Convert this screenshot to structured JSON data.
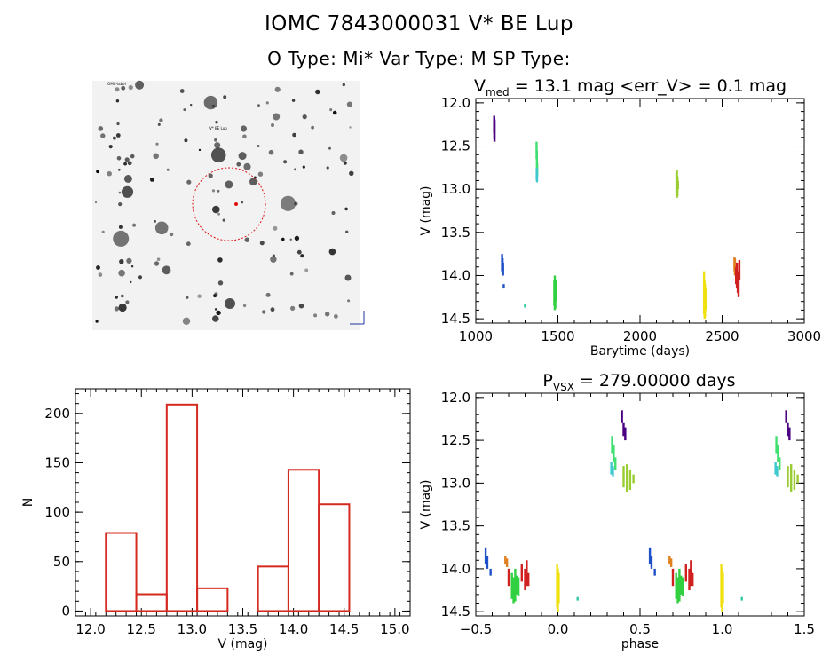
{
  "header": {
    "line1": "IOMC 7843000031    V* BE Lup",
    "line2": "O Type: Mi*   Var Type: M   SP Type:"
  },
  "colors": {
    "axes": "#000000",
    "histogram": "#d42a20",
    "finder_marker": "#e01010"
  },
  "chart_data": [
    {
      "type": "image",
      "panel": "finder",
      "description_colors": [
        "grayscale"
      ],
      "marker": "dashed-circle",
      "labels": [
        "IOMC-label",
        "V* BE Lup"
      ]
    },
    {
      "type": "scatter",
      "panel": "light_curve",
      "title_prefix": "V",
      "title_sub": "med",
      "title_rest": " = 13.1 mag <err_V> = 0.1 mag",
      "xlabel": "Barytime (days)",
      "ylabel": "V (mag)",
      "xlim": [
        1000,
        3000
      ],
      "ylim": [
        14.55,
        11.95
      ],
      "xticks": [
        1000,
        1500,
        2000,
        2500,
        3000
      ],
      "yticks": [
        12.0,
        12.5,
        13.0,
        13.5,
        14.0,
        14.5
      ],
      "ytick_labels": [
        "12.0",
        "12.5",
        "13.0",
        "13.5",
        "14.0",
        "14.5"
      ],
      "series": [
        {
          "color": "#4b0082",
          "x": [
            1112,
            1113,
            1114
          ],
          "ymin": [
            12.15,
            12.18,
            12.2
          ],
          "ymax": [
            12.35,
            12.42,
            12.45
          ]
        },
        {
          "color": "#1e50c8",
          "x": [
            1160,
            1163,
            1166,
            1170
          ],
          "ymin": [
            13.75,
            13.8,
            13.85,
            14.1
          ],
          "ymax": [
            13.95,
            13.98,
            14.0,
            14.15
          ]
        },
        {
          "color": "#30c8a0",
          "x": [
            1300
          ],
          "ymin": [
            14.33
          ],
          "ymax": [
            14.37
          ]
        },
        {
          "color": "#40e070",
          "x": [
            1370,
            1372,
            1374
          ],
          "ymin": [
            12.45,
            12.55,
            12.7
          ],
          "ymax": [
            12.65,
            12.75,
            12.85
          ]
        },
        {
          "color": "#40c8d0",
          "x": [
            1371,
            1373
          ],
          "ymin": [
            12.75,
            12.8
          ],
          "ymax": [
            12.9,
            12.92
          ]
        },
        {
          "color": "#30d040",
          "x": [
            1478,
            1481,
            1484,
            1487,
            1490
          ],
          "ymin": [
            14.05,
            14.0,
            14.1,
            14.05,
            14.15
          ],
          "ymax": [
            14.35,
            14.4,
            14.38,
            14.3,
            14.25
          ]
        },
        {
          "color": "#9acd32",
          "x": [
            2222,
            2225,
            2228,
            2231
          ],
          "ymin": [
            12.8,
            12.78,
            12.85,
            12.9
          ],
          "ymax": [
            13.05,
            13.1,
            13.08,
            13.0
          ]
        },
        {
          "color": "#f0e010",
          "x": [
            2390,
            2393,
            2396,
            2399
          ],
          "ymin": [
            13.95,
            14.05,
            14.1,
            14.15
          ],
          "ymax": [
            14.45,
            14.5,
            14.48,
            14.4
          ]
        },
        {
          "color": "#e08020",
          "x": [
            2575,
            2578
          ],
          "ymin": [
            13.78,
            13.8
          ],
          "ymax": [
            13.95,
            14.0
          ]
        },
        {
          "color": "#d02020",
          "x": [
            2585,
            2590,
            2595,
            2600,
            2605
          ],
          "ymin": [
            13.9,
            13.85,
            13.95,
            14.0,
            13.82
          ],
          "ymax": [
            14.1,
            14.15,
            14.2,
            14.25,
            14.05
          ]
        }
      ]
    },
    {
      "type": "bar",
      "panel": "histogram",
      "xlabel": "V (mag)",
      "ylabel": "N",
      "xlim": [
        11.85,
        15.15
      ],
      "ylim": [
        -5,
        225
      ],
      "xticks": [
        12.0,
        12.5,
        13.0,
        13.5,
        14.0,
        14.5,
        15.0
      ],
      "xtick_labels": [
        "12.0",
        "12.5",
        "13.0",
        "13.5",
        "14.0",
        "14.5",
        "15.0"
      ],
      "yticks": [
        0,
        50,
        100,
        150,
        200
      ],
      "bin_edges": [
        12.15,
        12.45,
        12.75,
        13.05,
        13.35,
        13.65,
        13.95,
        14.25,
        14.55
      ],
      "values": [
        79,
        17,
        209,
        23,
        0,
        45,
        143,
        108
      ]
    },
    {
      "type": "scatter",
      "panel": "phase_curve",
      "title_prefix": "P",
      "title_sub": "VSX",
      "title_rest": " = 279.00000 days",
      "xlabel": "phase",
      "ylabel": "V (mag)",
      "xlim": [
        -0.5,
        1.5
      ],
      "ylim": [
        14.55,
        11.95
      ],
      "xticks": [
        -0.5,
        0.0,
        0.5,
        1.0,
        1.5
      ],
      "xtick_labels": [
        "−0.5",
        "0.0",
        "0.5",
        "1.0",
        "1.5"
      ],
      "yticks": [
        12.0,
        12.5,
        13.0,
        13.5,
        14.0,
        14.5
      ],
      "ytick_labels": [
        "12.0",
        "12.5",
        "13.0",
        "13.5",
        "14.0",
        "14.5"
      ],
      "series": [
        {
          "color": "#1e50c8",
          "x": [
            -0.44,
            -0.43,
            -0.41
          ],
          "ymin": [
            13.75,
            13.85,
            14.0
          ],
          "ymax": [
            13.95,
            14.0,
            14.08
          ]
        },
        {
          "color": "#e08020",
          "x": [
            -0.32,
            -0.31
          ],
          "ymin": [
            13.85,
            13.88
          ],
          "ymax": [
            13.95,
            13.98
          ]
        },
        {
          "color": "#30d040",
          "x": [
            -0.28,
            -0.27,
            -0.26,
            -0.25,
            -0.24
          ],
          "ymin": [
            14.05,
            14.1,
            14.0,
            14.08,
            14.1
          ],
          "ymax": [
            14.35,
            14.4,
            14.38,
            14.3,
            14.32
          ]
        },
        {
          "color": "#d02020",
          "x": [
            -0.3,
            -0.22,
            -0.2,
            -0.19,
            -0.18
          ],
          "ymin": [
            14.0,
            13.95,
            14.0,
            13.9,
            14.05
          ],
          "ymax": [
            14.2,
            14.15,
            14.25,
            14.2,
            14.2
          ]
        },
        {
          "color": "#f0e010",
          "x": [
            -0.005,
            0.0,
            0.005
          ],
          "ymin": [
            13.95,
            14.0,
            14.05
          ],
          "ymax": [
            14.45,
            14.5,
            14.4
          ]
        },
        {
          "color": "#30c8a0",
          "x": [
            0.12
          ],
          "ymin": [
            14.33
          ],
          "ymax": [
            14.37
          ]
        },
        {
          "color": "#40e070",
          "x": [
            0.33,
            0.34,
            0.35
          ],
          "ymin": [
            12.45,
            12.55,
            12.7
          ],
          "ymax": [
            12.65,
            12.75,
            12.85
          ]
        },
        {
          "color": "#40c8d0",
          "x": [
            0.325,
            0.335
          ],
          "ymin": [
            12.75,
            12.8
          ],
          "ymax": [
            12.9,
            12.92
          ]
        },
        {
          "color": "#4b0082",
          "x": [
            0.39,
            0.4,
            0.41
          ],
          "ymin": [
            12.15,
            12.3,
            12.35
          ],
          "ymax": [
            12.3,
            12.45,
            12.5
          ]
        },
        {
          "color": "#9acd32",
          "x": [
            0.4,
            0.42,
            0.44,
            0.46
          ],
          "ymin": [
            12.8,
            12.78,
            12.85,
            12.9
          ],
          "ymax": [
            13.05,
            13.1,
            13.08,
            13.0
          ]
        },
        {
          "color": "#1e50c8",
          "x": [
            0.56,
            0.57,
            0.59
          ],
          "ymin": [
            13.75,
            13.85,
            14.0
          ],
          "ymax": [
            13.95,
            14.0,
            14.08
          ]
        },
        {
          "color": "#e08020",
          "x": [
            0.68,
            0.69
          ],
          "ymin": [
            13.85,
            13.88
          ],
          "ymax": [
            13.95,
            13.98
          ]
        },
        {
          "color": "#30d040",
          "x": [
            0.72,
            0.73,
            0.74,
            0.75,
            0.76
          ],
          "ymin": [
            14.05,
            14.1,
            14.0,
            14.08,
            14.1
          ],
          "ymax": [
            14.35,
            14.4,
            14.38,
            14.3,
            14.32
          ]
        },
        {
          "color": "#d02020",
          "x": [
            0.7,
            0.78,
            0.8,
            0.81,
            0.82
          ],
          "ymin": [
            14.0,
            13.95,
            14.0,
            13.9,
            14.05
          ],
          "ymax": [
            14.2,
            14.15,
            14.25,
            14.2,
            14.2
          ]
        },
        {
          "color": "#f0e010",
          "x": [
            0.995,
            1.0,
            1.005
          ],
          "ymin": [
            13.95,
            14.0,
            14.05
          ],
          "ymax": [
            14.45,
            14.5,
            14.4
          ]
        },
        {
          "color": "#30c8a0",
          "x": [
            1.12
          ],
          "ymin": [
            14.33
          ],
          "ymax": [
            14.37
          ]
        },
        {
          "color": "#40e070",
          "x": [
            1.33,
            1.34,
            1.35
          ],
          "ymin": [
            12.45,
            12.55,
            12.7
          ],
          "ymax": [
            12.65,
            12.75,
            12.85
          ]
        },
        {
          "color": "#40c8d0",
          "x": [
            1.325,
            1.335
          ],
          "ymin": [
            12.75,
            12.8
          ],
          "ymax": [
            12.9,
            12.92
          ]
        },
        {
          "color": "#4b0082",
          "x": [
            1.39,
            1.4,
            1.41
          ],
          "ymin": [
            12.15,
            12.3,
            12.35
          ],
          "ymax": [
            12.3,
            12.45,
            12.5
          ]
        },
        {
          "color": "#9acd32",
          "x": [
            1.4,
            1.42,
            1.44,
            1.46
          ],
          "ymin": [
            12.8,
            12.78,
            12.85,
            12.9
          ],
          "ymax": [
            13.05,
            13.1,
            13.08,
            13.0
          ]
        }
      ]
    }
  ]
}
